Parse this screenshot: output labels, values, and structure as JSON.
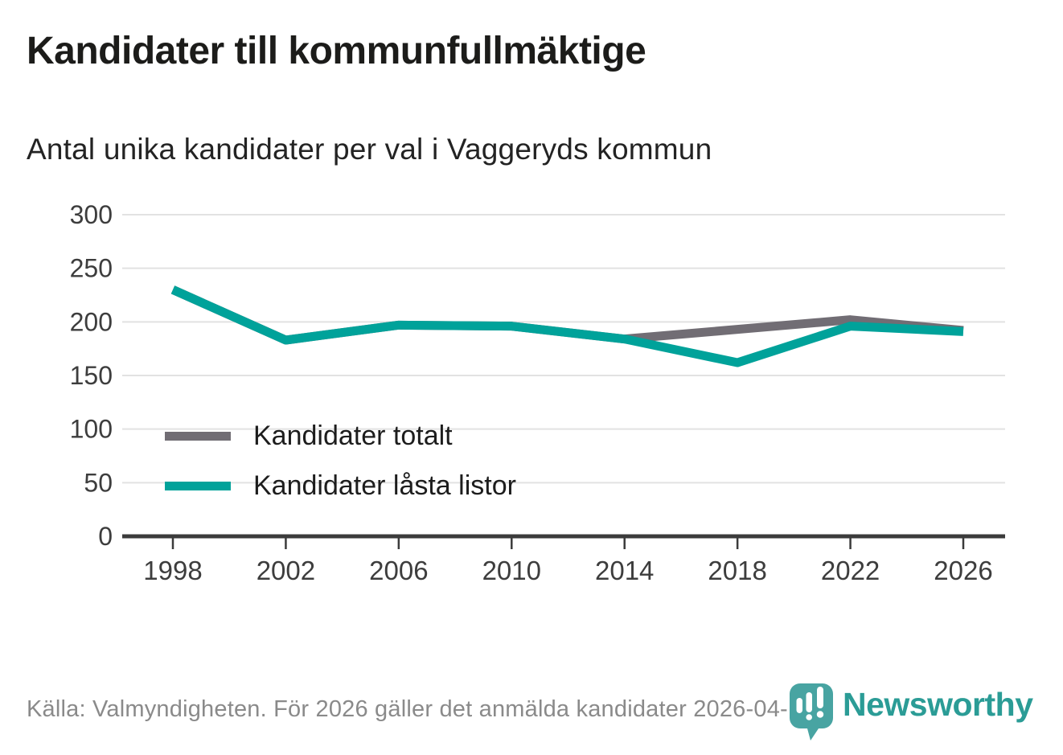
{
  "header": {
    "title": "Kandidater till kommunfullmäktige",
    "subtitle": "Antal unika kandidater per val i Vaggeryds kommun"
  },
  "chart_data": {
    "type": "line",
    "title": "Kandidater till kommunfullmäktige",
    "subtitle": "Antal unika kandidater per val i Vaggeryds kommun",
    "categories": [
      "1998",
      "2002",
      "2006",
      "2010",
      "2014",
      "2018",
      "2022",
      "2026"
    ],
    "series": [
      {
        "name": "Kandidater totalt",
        "color": "#716d74",
        "values": [
          230,
          183,
          197,
          196,
          184,
          193,
          202,
          192
        ]
      },
      {
        "name": "Kandidater låsta listor",
        "color": "#00a29a",
        "values": [
          230,
          183,
          197,
          196,
          184,
          162,
          196,
          191
        ]
      }
    ],
    "xlabel": "",
    "ylabel": "",
    "ylim": [
      0,
      300
    ],
    "yticks": [
      0,
      50,
      100,
      150,
      200,
      250,
      300
    ],
    "grid": true,
    "legend_position": "inside-left",
    "axis_color": "#3b3b3b",
    "grid_color": "#e2e2e2",
    "tick_label_color": "#3d3d3d"
  },
  "footer": {
    "source": "Källa: Valmyndigheten. För 2026 gäller det anmälda kandidater 2026-04-10.",
    "brand": "Newsworthy",
    "brand_color": "#2b9c96",
    "brand_icon": "speech-bubble-bar-chart-exclamation",
    "brand_icon_color": "#48a4a2"
  }
}
